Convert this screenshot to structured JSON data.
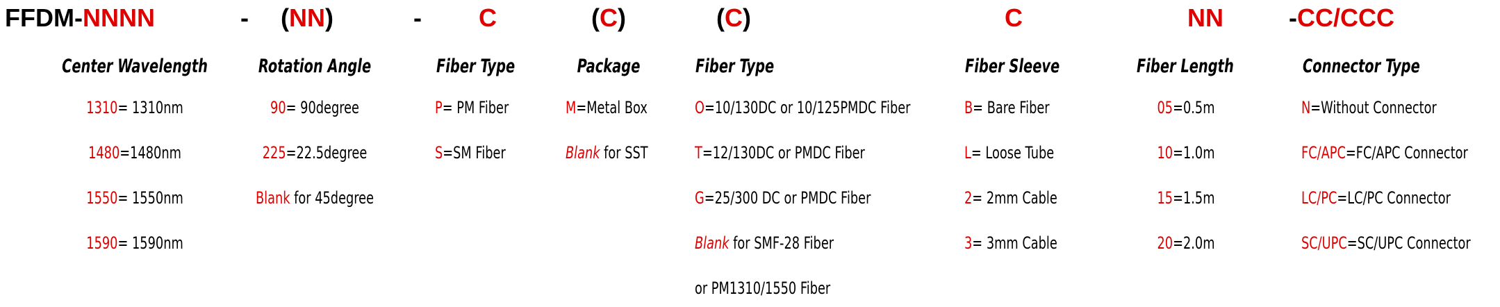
{
  "header": [
    [
      {
        "text": "FFDM-",
        "color": "#000000"
      },
      {
        "text": "NNNN",
        "color": "#e00000"
      }
    ],
    [
      {
        "text": "-",
        "color": "#000000"
      }
    ],
    [
      {
        "text": "(",
        "color": "#000000"
      },
      {
        "text": "NN",
        "color": "#e00000"
      },
      {
        "text": ")",
        "color": "#000000"
      }
    ],
    [
      {
        "text": "-",
        "color": "#000000"
      }
    ],
    [
      {
        "text": "C",
        "color": "#e00000"
      }
    ],
    [
      {
        "text": "(",
        "color": "#000000"
      },
      {
        "text": "C",
        "color": "#e00000"
      },
      {
        "text": ")",
        "color": "#000000"
      }
    ],
    [
      {
        "text": "(",
        "color": "#000000"
      },
      {
        "text": "C",
        "color": "#e00000"
      },
      {
        "text": ")",
        "color": "#000000"
      }
    ],
    [
      {
        "text": "C",
        "color": "#e00000"
      }
    ],
    [
      {
        "text": "NN",
        "color": "#e00000"
      }
    ],
    [
      {
        "text": "-",
        "color": "#000000"
      },
      {
        "text": "CC/CCC",
        "color": "#e00000"
      }
    ]
  ],
  "columns": [
    {
      "title": "Center Wavelength",
      "entries": [
        {
          "code": "1310",
          "text": "= 1310nm"
        },
        {
          "code": "1480",
          "text": "=1480nm"
        },
        {
          "code": "1550",
          "text": "= 1550nm"
        },
        {
          "code": "1590",
          "text": "= 1590nm"
        }
      ]
    },
    {
      "title": "Rotation Angle",
      "entries": [
        {
          "code": "90",
          "text": "= 90degree"
        },
        {
          "code": "225",
          "text": "=22.5degree"
        },
        {
          "code": "Blank",
          "text": " for 45degree"
        }
      ]
    },
    {
      "title": "Fiber Type",
      "entries": [
        {
          "code": "P",
          "text": "= PM Fiber"
        },
        {
          "code": "S",
          "text": "=SM Fiber"
        }
      ]
    },
    {
      "title": "Package",
      "entries": [
        {
          "code": "M",
          "text": "=Metal Box"
        },
        {
          "code": "Blank",
          "text": " for SST",
          "italic": true
        }
      ]
    },
    {
      "title": "Fiber Type",
      "entries": [
        {
          "code": "O",
          "text": "=10/130DC or 10/125PMDC Fiber"
        },
        {
          "code": "T",
          "text": "=12/130DC or PMDC Fiber"
        },
        {
          "code": "G",
          "text": "=25/300 DC or PMDC Fiber"
        },
        {
          "code": "Blank",
          "text": " for SMF-28 Fiber",
          "italic": true
        },
        {
          "text": "or PM1310/1550 Fiber"
        }
      ]
    },
    {
      "title": "Fiber Sleeve",
      "entries": [
        {
          "code": "B",
          "text": "= Bare Fiber"
        },
        {
          "code": "L",
          "text": "= Loose Tube"
        },
        {
          "code": "2",
          "text": "= 2mm Cable"
        },
        {
          "code": "3",
          "text": "= 3mm Cable"
        }
      ]
    },
    {
      "title": "Fiber Length",
      "entries": [
        {
          "code": "05",
          "text": "=0.5m"
        },
        {
          "code": "10",
          "text": "=1.0m"
        },
        {
          "code": "15",
          "text": "=1.5m"
        },
        {
          "code": "20",
          "text": "=2.0m"
        }
      ]
    },
    {
      "title": "Connector Type",
      "entries": [
        {
          "code": "N",
          "text": "=Without Connector"
        },
        {
          "code": "FC/APC",
          "text": "=FC/APC Connector"
        },
        {
          "code": "LC/PC",
          "text": "=LC/PC Connector"
        },
        {
          "code": "SC/UPC",
          "text": "=SC/UPC Connector"
        }
      ]
    }
  ]
}
